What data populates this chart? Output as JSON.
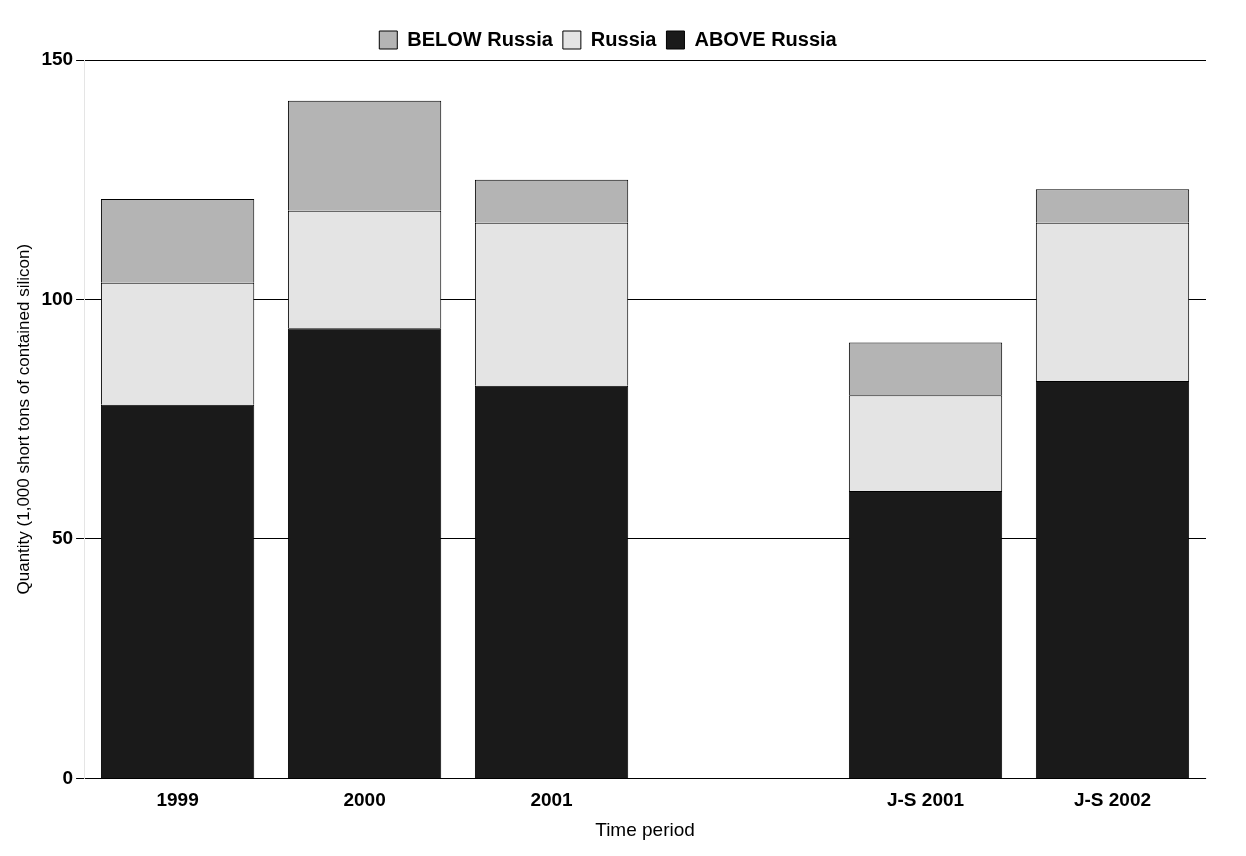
{
  "chart_data": {
    "type": "bar",
    "stacked": true,
    "xlabel": "Time period",
    "ylabel": "Quantity (1,000 short tons of contained silicon)",
    "categories": [
      "1999",
      "2000",
      "2001",
      null,
      "J-S 2001",
      "J-S 2002"
    ],
    "series": [
      {
        "name": "ABOVE Russia",
        "color": "#1a1a1a",
        "values": [
          78,
          94,
          82,
          null,
          60,
          83
        ]
      },
      {
        "name": "Russia",
        "color": "#e4e4e4",
        "values": [
          25.5,
          24.5,
          34,
          null,
          20,
          33
        ]
      },
      {
        "name": "BELOW Russia",
        "color": "#b4b4b4",
        "values": [
          17.5,
          23,
          9,
          null,
          11,
          7
        ]
      }
    ],
    "ylim": [
      0,
      150
    ],
    "yticks": [
      0,
      50,
      100,
      150
    ],
    "grid": "y",
    "legend": "top"
  }
}
